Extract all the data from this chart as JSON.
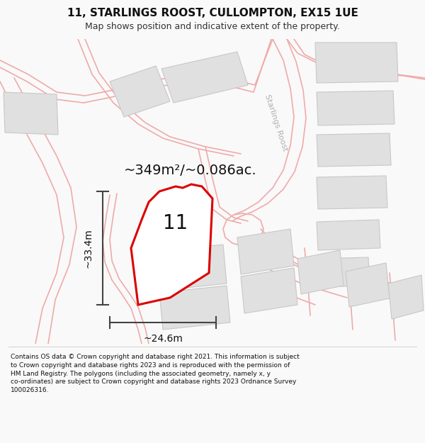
{
  "title": "11, STARLINGS ROOST, CULLOMPTON, EX15 1UE",
  "subtitle": "Map shows position and indicative extent of the property.",
  "area_label": "~349m²/~0.086ac.",
  "number_label": "11",
  "dim_height": "~33.4m",
  "dim_width": "~24.6m",
  "street_label": "Starlings Roost",
  "footer": "Contains OS data © Crown copyright and database right 2021. This information is subject to Crown copyright and database rights 2023 and is reproduced with the permission of HM Land Registry. The polygons (including the associated geometry, namely x, y co-ordinates) are subject to Crown copyright and database rights 2023 Ordnance Survey 100026316.",
  "bg_color": "#f9f9f9",
  "map_bg": "#ffffff",
  "plot_color_fill": "#ffffff",
  "plot_color_edge": "#dd0000",
  "road_color": "#f0aaaa",
  "building_color": "#e0e0e0",
  "building_edge": "#c8c8c8",
  "dim_line_color": "#444444",
  "street_label_color": "#b0b0b0",
  "title_fontsize": 11,
  "subtitle_fontsize": 9,
  "area_fontsize": 14,
  "number_fontsize": 20,
  "dim_fontsize": 10,
  "footer_fontsize": 6.5
}
